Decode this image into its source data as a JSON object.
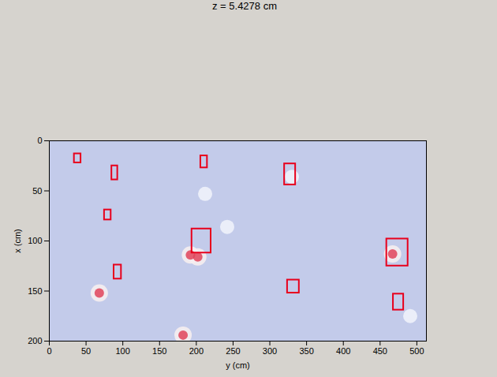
{
  "chart_data": {
    "type": "heatmap",
    "title": "z = 5.4278 cm",
    "x_label": "y (cm)",
    "y_label": "x (cm)",
    "xlim": [
      0,
      513
    ],
    "ylim": [
      0,
      200
    ],
    "xticks": [
      0,
      50,
      100,
      150,
      200,
      250,
      300,
      350,
      400,
      450,
      500
    ],
    "yticks": [
      0,
      50,
      100,
      150,
      200
    ],
    "color": "#e8001c",
    "boxes": [
      {
        "y0": 34,
        "y1": 43,
        "x0": 13,
        "x1": 22
      },
      {
        "y0": 85,
        "y1": 93,
        "x0": 25,
        "x1": 39
      },
      {
        "y0": 206,
        "y1": 215,
        "x0": 15,
        "x1": 27
      },
      {
        "y0": 320,
        "y1": 335,
        "x0": 23,
        "x1": 44
      },
      {
        "y0": 75,
        "y1": 84,
        "x0": 69,
        "x1": 79
      },
      {
        "y0": 194,
        "y1": 220,
        "x0": 88,
        "x1": 112
      },
      {
        "y0": 459,
        "y1": 488,
        "x0": 98,
        "x1": 125
      },
      {
        "y0": 88,
        "y1": 98,
        "x0": 124,
        "x1": 138
      },
      {
        "y0": 324,
        "y1": 340,
        "x0": 139,
        "x1": 152
      },
      {
        "y0": 468,
        "y1": 482,
        "x0": 153,
        "x1": 169
      }
    ],
    "hot_spots": [
      {
        "y": 202,
        "x": 116
      },
      {
        "y": 192,
        "x": 114
      },
      {
        "y": 467,
        "x": 113
      },
      {
        "y": 68,
        "x": 152
      },
      {
        "y": 182,
        "x": 194
      }
    ],
    "pale_spots": [
      {
        "y": 242,
        "x": 86
      },
      {
        "y": 212,
        "x": 53
      },
      {
        "y": 491,
        "x": 175
      },
      {
        "y": 330,
        "x": 36
      }
    ]
  }
}
